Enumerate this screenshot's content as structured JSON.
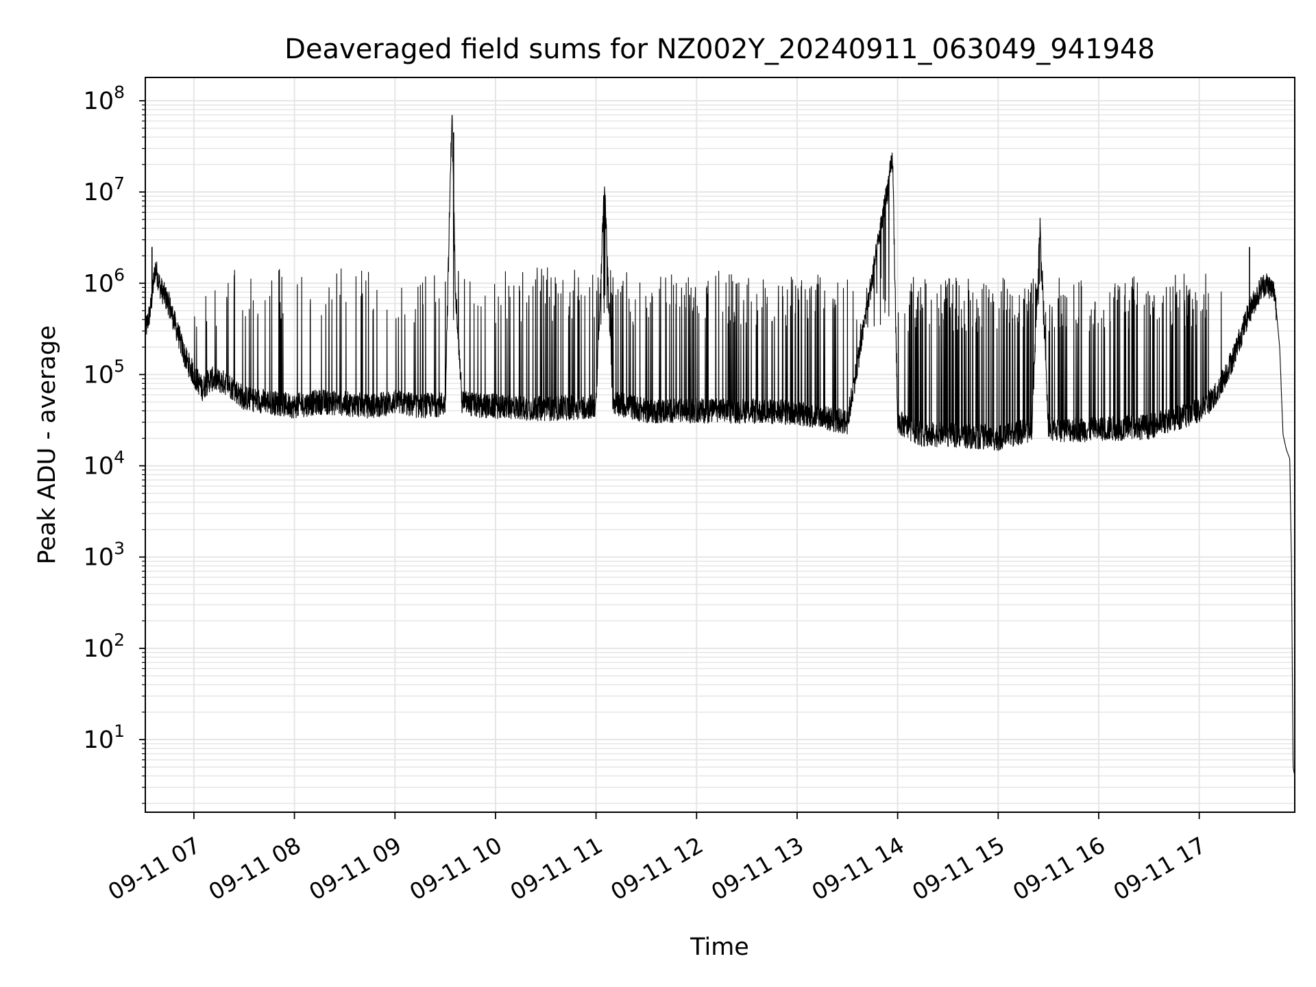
{
  "chart_data": {
    "type": "line",
    "title": "Deaveraged field sums for NZ002Y_20240911_063049_941948",
    "xlabel": "Time",
    "ylabel": "Peak ADU - average",
    "yscale": "log",
    "ylim": [
      1.6,
      180000000
    ],
    "xlim": [
      "2024-09-11 06:31",
      "2024-09-11 17:57"
    ],
    "grid": true,
    "line_color": "#000000",
    "grid_color": "#e5e5e5",
    "x_ticks": [
      "2024-09-11 07:00",
      "2024-09-11 08:00",
      "2024-09-11 09:00",
      "2024-09-11 10:00",
      "2024-09-11 11:00",
      "2024-09-11 12:00",
      "2024-09-11 13:00",
      "2024-09-11 14:00",
      "2024-09-11 15:00",
      "2024-09-11 16:00",
      "2024-09-11 17:00"
    ],
    "x_tick_labels": [
      "09-11 07",
      "09-11 08",
      "09-11 09",
      "09-11 10",
      "09-11 11",
      "09-11 12",
      "09-11 13",
      "09-11 14",
      "09-11 15",
      "09-11 16",
      "09-11 17"
    ],
    "y_ticks": [
      10,
      100,
      1000,
      10000,
      100000,
      1000000,
      10000000,
      100000000
    ],
    "y_tick_labels": [
      {
        "base": "10",
        "exp": "1"
      },
      {
        "base": "10",
        "exp": "2"
      },
      {
        "base": "10",
        "exp": "3"
      },
      {
        "base": "10",
        "exp": "4"
      },
      {
        "base": "10",
        "exp": "5"
      },
      {
        "base": "10",
        "exp": "6"
      },
      {
        "base": "10",
        "exp": "7"
      },
      {
        "base": "10",
        "exp": "8"
      }
    ],
    "series": [
      {
        "x": [
          "2024-09-11 06:31",
          "2024-09-11 06:34",
          "2024-09-11 06:37",
          "2024-09-11 06:40",
          "2024-09-11 06:45",
          "2024-09-11 06:50",
          "2024-09-11 06:55",
          "2024-09-11 07:00",
          "2024-09-11 07:05",
          "2024-09-11 07:10",
          "2024-09-11 07:20",
          "2024-09-11 07:30",
          "2024-09-11 07:45",
          "2024-09-11 08:00",
          "2024-09-11 08:15",
          "2024-09-11 08:30",
          "2024-09-11 08:45",
          "2024-09-11 09:00",
          "2024-09-11 09:15",
          "2024-09-11 09:30",
          "2024-09-11 09:34",
          "2024-09-11 09:36",
          "2024-09-11 09:40",
          "2024-09-11 09:50",
          "2024-09-11 10:00",
          "2024-09-11 10:30",
          "2024-09-11 11:00",
          "2024-09-11 11:05",
          "2024-09-11 11:10",
          "2024-09-11 11:30",
          "2024-09-11 12:00",
          "2024-09-11 12:30",
          "2024-09-11 13:00",
          "2024-09-11 13:30",
          "2024-09-11 13:57",
          "2024-09-11 14:00",
          "2024-09-11 14:15",
          "2024-09-11 14:30",
          "2024-09-11 15:00",
          "2024-09-11 15:20",
          "2024-09-11 15:25",
          "2024-09-11 15:30",
          "2024-09-11 16:00",
          "2024-09-11 16:30",
          "2024-09-11 16:50",
          "2024-09-11 17:00",
          "2024-09-11 17:10",
          "2024-09-11 17:20",
          "2024-09-11 17:30",
          "2024-09-11 17:37",
          "2024-09-11 17:40",
          "2024-09-11 17:45",
          "2024-09-11 17:48",
          "2024-09-11 17:50",
          "2024-09-11 17:52",
          "2024-09-11 17:54",
          "2024-09-11 17:55",
          "2024-09-11 17:56",
          "2024-09-11 17:57"
        ],
        "values": [
          300000,
          500000,
          1500000,
          900000,
          600000,
          300000,
          150000,
          100000,
          70000,
          90000,
          80000,
          55000,
          50000,
          45000,
          50000,
          48000,
          45000,
          50000,
          45000,
          48000,
          80000000,
          1000000,
          50000,
          45000,
          45000,
          42000,
          45000,
          12000000,
          50000,
          40000,
          40000,
          40000,
          38000,
          30000,
          23000000,
          30000,
          22000,
          22000,
          20000,
          25000,
          4500000,
          25000,
          25000,
          27000,
          35000,
          40000,
          60000,
          150000,
          500000,
          900000,
          1000000,
          800000,
          200000,
          22000,
          15000,
          12000,
          1000,
          5,
          4
        ]
      }
    ],
    "spike_envelope": {
      "x": [
        "2024-09-11 06:45",
        "2024-09-11 07:30",
        "2024-09-11 08:30",
        "2024-09-11 09:00",
        "2024-09-11 09:45",
        "2024-09-11 10:30",
        "2024-09-11 11:00",
        "2024-09-11 12:00",
        "2024-09-11 13:00",
        "2024-09-11 14:00",
        "2024-09-11 15:00",
        "2024-09-11 16:00",
        "2024-09-11 17:00",
        "2024-09-11 17:30"
      ],
      "values": [
        1000000,
        1500000,
        1500000,
        1400000,
        1400000,
        1500000,
        1400000,
        1400000,
        1300000,
        1200000,
        1150000,
        1200000,
        1300000,
        1600000
      ]
    }
  }
}
